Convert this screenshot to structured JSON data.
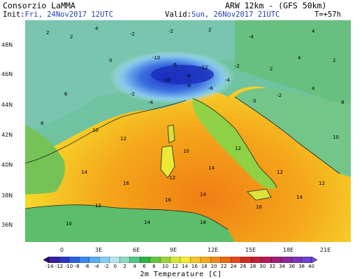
{
  "header": {
    "org": "Consorzio LaMMA",
    "model": "ARW 12km - (GFS 50km)",
    "init_label": "Init:",
    "init_value": "Fri, 24Nov2017 12UTC",
    "valid_label": "Valid:",
    "valid_value": "Sun, 26Nov2017 21UTC",
    "lead": "T=+57h"
  },
  "map": {
    "lat_labels": [
      "48N",
      "46N",
      "44N",
      "42N",
      "40N",
      "38N",
      "36N"
    ],
    "lon_labels": [
      "0",
      "3E",
      "6E",
      "9E",
      "12E",
      "15E",
      "18E",
      "21E"
    ],
    "sea_color": "#f7a51a",
    "land_color": "#7ac943",
    "cold_color": "#1b2fbd",
    "values": [
      {
        "t": "2"
      },
      {
        "t": "2"
      },
      {
        "t": "4"
      },
      {
        "t": "-2"
      },
      {
        "t": "-2"
      },
      {
        "t": "2"
      },
      {
        "t": "-4"
      },
      {
        "t": "4"
      },
      {
        "t": "-10"
      },
      {
        "t": "-6"
      },
      {
        "t": "-8"
      },
      {
        "t": "-12"
      },
      {
        "t": "-10"
      },
      {
        "t": "-8"
      },
      {
        "t": "-6"
      },
      {
        "t": "-4"
      },
      {
        "t": "0"
      },
      {
        "t": "-2"
      },
      {
        "t": "2"
      },
      {
        "t": "4"
      },
      {
        "t": "-2"
      },
      {
        "t": "-4"
      },
      {
        "t": "0"
      },
      {
        "t": "-2"
      },
      {
        "t": "6"
      },
      {
        "t": "8"
      },
      {
        "t": "10"
      },
      {
        "t": "12"
      },
      {
        "t": "10"
      },
      {
        "t": "12"
      },
      {
        "t": "14"
      },
      {
        "t": "12"
      },
      {
        "t": "14"
      },
      {
        "t": "16"
      },
      {
        "t": "16"
      },
      {
        "t": "14"
      },
      {
        "t": "12"
      },
      {
        "t": "10"
      },
      {
        "t": "14"
      },
      {
        "t": "18"
      },
      {
        "t": "16"
      },
      {
        "t": "14"
      },
      {
        "t": "12"
      },
      {
        "t": "10"
      },
      {
        "t": "8"
      },
      {
        "t": "12"
      },
      {
        "t": "4"
      },
      {
        "t": "2"
      }
    ]
  },
  "colorbar": {
    "labels": [
      "-14",
      "-12",
      "-10",
      "-8",
      "-6",
      "-4",
      "-2",
      "0",
      "2",
      "4",
      "6",
      "8",
      "10",
      "12",
      "14",
      "16",
      "18",
      "20",
      "22",
      "24",
      "26",
      "28",
      "30",
      "32",
      "34",
      "36",
      "38",
      "40"
    ],
    "colors": [
      "#2b0a6b",
      "#3b1fa0",
      "#2a35c9",
      "#2f5fe0",
      "#3b86ea",
      "#58aef0",
      "#86cdf2",
      "#b5e3ef",
      "#8fd9c3",
      "#52c586",
      "#2fb24a",
      "#64c540",
      "#9bd33b",
      "#d3e53a",
      "#f4ec32",
      "#f6c826",
      "#f4a81d",
      "#f08a18",
      "#ea6b16",
      "#e2481a",
      "#d12b20",
      "#c01e3a",
      "#b01a5a",
      "#9e1f78",
      "#8b2797",
      "#7a34b5",
      "#6e42cc",
      "#6b55dc"
    ],
    "title": "2m Temperature [C]"
  }
}
